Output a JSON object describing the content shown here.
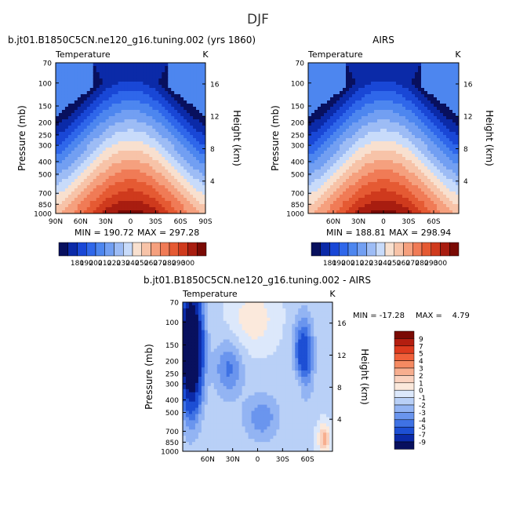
{
  "figure": {
    "title": "DJF"
  },
  "chart_data": [
    {
      "type": "heatmap",
      "title": "b.jt01.B1850C5CN.ne120_g16.tuning.002 (yrs 1860)",
      "subtitle": "Temperature",
      "units": "K",
      "xlabel": "",
      "ylabel": "Pressure (mb)",
      "y2label": "Height (km)",
      "x_ticks": [
        "90N",
        "60N",
        "30N",
        "0",
        "30S",
        "60S",
        "90S"
      ],
      "y_ticks": [
        70,
        100,
        150,
        200,
        250,
        300,
        400,
        500,
        700,
        850,
        1000
      ],
      "y_scale": "log",
      "y2_ticks": [
        4,
        8,
        12,
        16
      ],
      "min": 190.72,
      "max": 297.28,
      "min_label": "MIN = 190.72",
      "max_label": "MAX = 297.28",
      "field_model": "abs"
    },
    {
      "type": "heatmap",
      "title": "AIRS",
      "subtitle": "Temperature",
      "units": "K",
      "xlabel": "",
      "ylabel": "Pressure (mb)",
      "y2label": "Height (km)",
      "x_ticks": [
        "60N",
        "30N",
        "0",
        "30S",
        "60S"
      ],
      "y_ticks": [
        70,
        100,
        150,
        200,
        250,
        300,
        400,
        500,
        700,
        850,
        1000
      ],
      "y_scale": "log",
      "y2_ticks": [
        4,
        8,
        12,
        16
      ],
      "min": 188.81,
      "max": 298.94,
      "min_label": "MIN = 188.81",
      "max_label": "MAX = 298.94",
      "field_model": "abs"
    },
    {
      "type": "heatmap",
      "title": "b.jt01.B1850C5CN.ne120_g16.tuning.002 - AIRS",
      "subtitle": "Temperature",
      "units": "K",
      "xlabel": "",
      "ylabel": "Pressure (mb)",
      "y2label": "Height (km)",
      "x_ticks": [
        "60N",
        "30N",
        "0",
        "30S",
        "60S"
      ],
      "y_ticks": [
        70,
        100,
        150,
        200,
        250,
        300,
        400,
        500,
        700,
        850,
        1000
      ],
      "y_scale": "log",
      "y2_ticks": [
        4,
        8,
        12,
        16
      ],
      "min": -17.28,
      "max": 4.79,
      "min_label": "MIN = -17.28",
      "max_label": "MAX =    4.79",
      "field_model": "diff"
    }
  ],
  "colorbars": {
    "absolute": {
      "orientation": "horizontal",
      "labels": [
        "180",
        "190",
        "200",
        "210",
        "220",
        "230",
        "240",
        "250",
        "260",
        "270",
        "280",
        "290",
        "300"
      ],
      "colors": [
        "#08105e",
        "#0b2aa8",
        "#1947d6",
        "#2f67ea",
        "#4d86ef",
        "#729ff2",
        "#9dbcf5",
        "#c8dbfa",
        "#f8e0cf",
        "#f7c3a8",
        "#f5a07e",
        "#f07b56",
        "#e55a33",
        "#cf3a1d",
        "#a81d10",
        "#7a0a04"
      ]
    },
    "difference": {
      "orientation": "vertical",
      "labels": [
        "9",
        "7",
        "5",
        "4",
        "3",
        "2",
        "1",
        "0",
        "-1",
        "-2",
        "-3",
        "-4",
        "-5",
        "-7",
        "-9"
      ],
      "colors": [
        "#7a0a04",
        "#b41e10",
        "#dd3a1e",
        "#f0603a",
        "#f58a62",
        "#f7ae8f",
        "#fad2bf",
        "#fbe9dc",
        "#dce8fb",
        "#b9d0f7",
        "#93b4f3",
        "#6a95ee",
        "#3f72e4",
        "#1d4fd4",
        "#0b2aa8",
        "#08105e"
      ]
    }
  }
}
